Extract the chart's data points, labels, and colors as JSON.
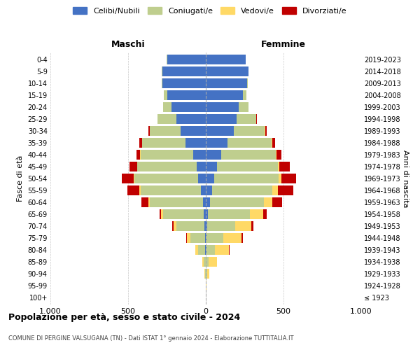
{
  "age_groups": [
    "100+",
    "95-99",
    "90-94",
    "85-89",
    "80-84",
    "75-79",
    "70-74",
    "65-69",
    "60-64",
    "55-59",
    "50-54",
    "45-49",
    "40-44",
    "35-39",
    "30-34",
    "25-29",
    "20-24",
    "15-19",
    "10-14",
    "5-9",
    "0-4"
  ],
  "year_labels": [
    "≤ 1923",
    "1924-1928",
    "1929-1933",
    "1934-1938",
    "1939-1943",
    "1944-1948",
    "1949-1953",
    "1954-1958",
    "1959-1963",
    "1964-1968",
    "1969-1973",
    "1974-1978",
    "1979-1983",
    "1984-1988",
    "1989-1993",
    "1994-1998",
    "1999-2003",
    "2004-2008",
    "2009-2013",
    "2014-2018",
    "2019-2023"
  ],
  "males": {
    "celibi": [
      0,
      0,
      1,
      2,
      3,
      5,
      8,
      15,
      20,
      30,
      50,
      60,
      80,
      130,
      160,
      190,
      220,
      250,
      280,
      280,
      250
    ],
    "coniugati": [
      0,
      1,
      3,
      12,
      45,
      95,
      180,
      260,
      340,
      390,
      410,
      380,
      340,
      280,
      200,
      120,
      55,
      20,
      5,
      3,
      2
    ],
    "vedovi": [
      0,
      1,
      3,
      8,
      18,
      22,
      18,
      12,
      8,
      6,
      4,
      3,
      2,
      1,
      1,
      0,
      0,
      0,
      0,
      0,
      0
    ],
    "divorziati": [
      0,
      0,
      0,
      0,
      2,
      4,
      8,
      12,
      45,
      80,
      75,
      50,
      25,
      15,
      8,
      3,
      2,
      1,
      0,
      0,
      0
    ]
  },
  "females": {
    "nubili": [
      0,
      0,
      1,
      2,
      3,
      4,
      8,
      15,
      25,
      40,
      55,
      70,
      100,
      140,
      180,
      200,
      210,
      240,
      265,
      275,
      255
    ],
    "coniugate": [
      0,
      2,
      6,
      18,
      55,
      110,
      180,
      270,
      350,
      390,
      415,
      395,
      350,
      285,
      200,
      125,
      65,
      22,
      6,
      2,
      1
    ],
    "vedove": [
      1,
      4,
      15,
      50,
      90,
      115,
      105,
      85,
      55,
      35,
      18,
      10,
      5,
      2,
      1,
      1,
      0,
      0,
      0,
      0,
      0
    ],
    "divorziate": [
      0,
      0,
      1,
      2,
      4,
      8,
      15,
      22,
      60,
      100,
      95,
      65,
      30,
      18,
      10,
      4,
      2,
      1,
      0,
      0,
      0
    ]
  },
  "colors": {
    "celibi_nubili": "#4472C4",
    "coniugati": "#BFCE8E",
    "vedovi": "#FFD966",
    "divorziati": "#C00000"
  },
  "xlim": 1000,
  "title": "Popolazione per età, sesso e stato civile - 2024",
  "subtitle": "COMUNE DI PERGINE VALSUGANA (TN) - Dati ISTAT 1° gennaio 2024 - Elaborazione TUTTITALIA.IT",
  "xlabel_left": "Maschi",
  "xlabel_right": "Femmine",
  "ylabel": "Fasce di età",
  "ylabel_right": "Anni di nascita",
  "bg_color": "#FFFFFF",
  "grid_color": "#BBBBBB"
}
